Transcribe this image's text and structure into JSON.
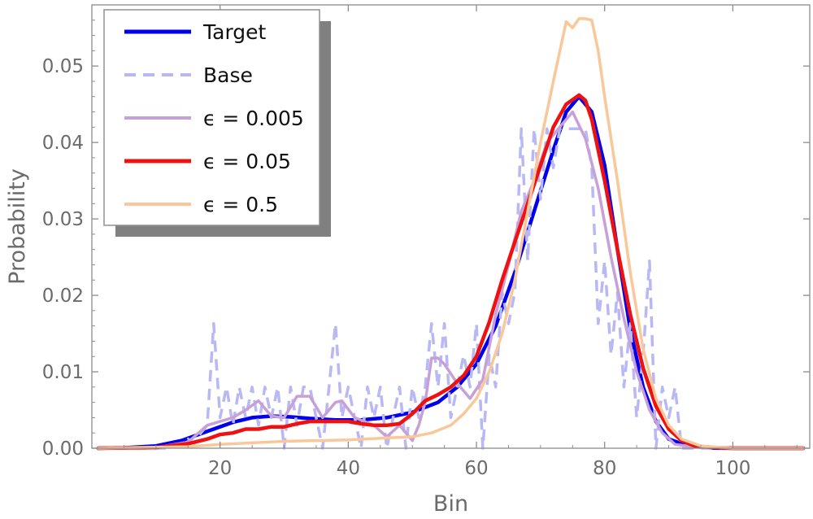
{
  "chart_data": {
    "type": "line",
    "title": "",
    "xlabel": "Bin",
    "ylabel": "Probability",
    "xlim": [
      0,
      112
    ],
    "ylim": [
      0,
      0.058
    ],
    "x_ticks": [
      20,
      40,
      60,
      80,
      100
    ],
    "x_tick_labels": [
      "20",
      "40",
      "60",
      "80",
      "100"
    ],
    "y_ticks": [
      0,
      0.01,
      0.02,
      0.03,
      0.04,
      0.05
    ],
    "y_tick_labels": [
      "0.00",
      "0.01",
      "0.02",
      "0.03",
      "0.04",
      "0.05"
    ],
    "grid": false,
    "frame": true,
    "legend_position": "top-left",
    "series": [
      {
        "name": "Target",
        "style": {
          "color": "#0000ee",
          "dashed": false
        },
        "points": [
          [
            1,
            0
          ],
          [
            5,
            5e-05
          ],
          [
            10,
            0.0003
          ],
          [
            14,
            0.001
          ],
          [
            18,
            0.0022
          ],
          [
            22,
            0.0034
          ],
          [
            25,
            0.004
          ],
          [
            28,
            0.0042
          ],
          [
            31,
            0.0041
          ],
          [
            34,
            0.0039
          ],
          [
            38,
            0.0037
          ],
          [
            42,
            0.0037
          ],
          [
            46,
            0.004
          ],
          [
            50,
            0.0047
          ],
          [
            54,
            0.006
          ],
          [
            57,
            0.008
          ],
          [
            60,
            0.011
          ],
          [
            63,
            0.016
          ],
          [
            66,
            0.023
          ],
          [
            69,
            0.031
          ],
          [
            72,
            0.039
          ],
          [
            74,
            0.044
          ],
          [
            76,
            0.046
          ],
          [
            78,
            0.044
          ],
          [
            80,
            0.037
          ],
          [
            82,
            0.026
          ],
          [
            84,
            0.0155
          ],
          [
            86,
            0.008
          ],
          [
            88,
            0.0035
          ],
          [
            90,
            0.0012
          ],
          [
            93,
            0.0003
          ],
          [
            97,
            2e-05
          ],
          [
            101,
            0
          ],
          [
            111,
            0
          ]
        ]
      },
      {
        "name": "Base",
        "style": {
          "color": "#b8b8f5",
          "dashed": true
        },
        "points": [
          [
            1,
            0
          ],
          [
            12,
            0
          ],
          [
            13,
            0.0005
          ],
          [
            14,
            0.0003
          ],
          [
            15,
            0.0012
          ],
          [
            16,
            0.0006
          ],
          [
            17,
            0.002
          ],
          [
            18,
            0.003
          ],
          [
            19,
            0.0163
          ],
          [
            20,
            0.004
          ],
          [
            21,
            0.008
          ],
          [
            22,
            0.003
          ],
          [
            23,
            0.008
          ],
          [
            24,
            0.004
          ],
          [
            25,
            0.008
          ],
          [
            26,
            0.003
          ],
          [
            27,
            0.008
          ],
          [
            28,
            0.004
          ],
          [
            29,
            0.008
          ],
          [
            30,
            0.0
          ],
          [
            31,
            0.008
          ],
          [
            32,
            0.003
          ],
          [
            33,
            0.008
          ],
          [
            34,
            0.008
          ],
          [
            35,
            0.004
          ],
          [
            36,
            0.0
          ],
          [
            37,
            0.008
          ],
          [
            38,
            0.0163
          ],
          [
            39,
            0.004
          ],
          [
            40,
            0.008
          ],
          [
            41,
            0.004
          ],
          [
            42,
            0.0
          ],
          [
            43,
            0.008
          ],
          [
            44,
            0.004
          ],
          [
            45,
            0.008
          ],
          [
            46,
            0.0
          ],
          [
            47,
            0.004
          ],
          [
            48,
            0.008
          ],
          [
            49,
            0.0
          ],
          [
            50,
            0.008
          ],
          [
            51,
            0.004
          ],
          [
            52,
            0.008
          ],
          [
            53,
            0.0163
          ],
          [
            54,
            0.008
          ],
          [
            55,
            0.0163
          ],
          [
            56,
            0.004
          ],
          [
            57,
            0.008
          ],
          [
            58,
            0.0122
          ],
          [
            59,
            0.008
          ],
          [
            60,
            0.0163
          ],
          [
            61,
            0.0
          ],
          [
            62,
            0.0122
          ],
          [
            63,
            0.008
          ],
          [
            64,
            0.0204
          ],
          [
            65,
            0.0163
          ],
          [
            66,
            0.0204
          ],
          [
            67,
            0.0418
          ],
          [
            68,
            0.0245
          ],
          [
            69,
            0.0418
          ],
          [
            70,
            0.0326
          ],
          [
            71,
            0.0418
          ],
          [
            72,
            0.0367
          ],
          [
            73,
            0.0418
          ],
          [
            74,
            0.0418
          ],
          [
            75,
            0.0418
          ],
          [
            76,
            0.0418
          ],
          [
            77,
            0.0418
          ],
          [
            78,
            0.0367
          ],
          [
            79,
            0.0163
          ],
          [
            80,
            0.0245
          ],
          [
            81,
            0.0122
          ],
          [
            82,
            0.0204
          ],
          [
            83,
            0.008
          ],
          [
            84,
            0.0163
          ],
          [
            85,
            0.004
          ],
          [
            86,
            0.0122
          ],
          [
            87,
            0.0245
          ],
          [
            88,
            0.0
          ],
          [
            89,
            0.008
          ],
          [
            90,
            0.004
          ],
          [
            91,
            0.008
          ],
          [
            92,
            0.0
          ],
          [
            93,
            0
          ],
          [
            111,
            0
          ]
        ]
      },
      {
        "name": "ϵ = 0.005",
        "style": {
          "color": "#c8a0d8",
          "dashed": false
        },
        "points": [
          [
            1,
            0
          ],
          [
            10,
            0.0001
          ],
          [
            15,
            0.0008
          ],
          [
            18,
            0.003
          ],
          [
            20,
            0.0035
          ],
          [
            22,
            0.004
          ],
          [
            24,
            0.005
          ],
          [
            26,
            0.0062
          ],
          [
            28,
            0.0042
          ],
          [
            30,
            0.004
          ],
          [
            32,
            0.0068
          ],
          [
            34,
            0.0068
          ],
          [
            36,
            0.004
          ],
          [
            38,
            0.006
          ],
          [
            39,
            0.0062
          ],
          [
            41,
            0.004
          ],
          [
            44,
            0.003
          ],
          [
            46,
            0.0015
          ],
          [
            48,
            0.003
          ],
          [
            50,
            0.001
          ],
          [
            51,
            0.003
          ],
          [
            52,
            0.006
          ],
          [
            53,
            0.0118
          ],
          [
            54,
            0.0118
          ],
          [
            55,
            0.011
          ],
          [
            57,
            0.0085
          ],
          [
            59,
            0.0065
          ],
          [
            61,
            0.009
          ],
          [
            63,
            0.0175
          ],
          [
            65,
            0.024
          ],
          [
            67,
            0.031
          ],
          [
            69,
            0.035
          ],
          [
            71,
            0.04
          ],
          [
            73,
            0.042
          ],
          [
            75,
            0.044
          ],
          [
            77,
            0.0405
          ],
          [
            79,
            0.034
          ],
          [
            81,
            0.025
          ],
          [
            83,
            0.017
          ],
          [
            85,
            0.01
          ],
          [
            87,
            0.005
          ],
          [
            89,
            0.002
          ],
          [
            91,
            0.0005
          ],
          [
            95,
            0.0001
          ],
          [
            100,
            0
          ],
          [
            111,
            0
          ]
        ]
      },
      {
        "name": "ϵ = 0.05",
        "style": {
          "color": "#ee1111",
          "dashed": false
        },
        "points": [
          [
            1,
            0
          ],
          [
            10,
            0.0001
          ],
          [
            15,
            0.0006
          ],
          [
            18,
            0.0012
          ],
          [
            20,
            0.0018
          ],
          [
            22,
            0.002
          ],
          [
            24,
            0.0025
          ],
          [
            26,
            0.0025
          ],
          [
            28,
            0.0028
          ],
          [
            30,
            0.0028
          ],
          [
            32,
            0.0032
          ],
          [
            34,
            0.0035
          ],
          [
            36,
            0.0035
          ],
          [
            38,
            0.0035
          ],
          [
            40,
            0.0035
          ],
          [
            42,
            0.0032
          ],
          [
            44,
            0.003
          ],
          [
            46,
            0.003
          ],
          [
            48,
            0.0032
          ],
          [
            50,
            0.0045
          ],
          [
            52,
            0.0062
          ],
          [
            54,
            0.007
          ],
          [
            56,
            0.008
          ],
          [
            58,
            0.0095
          ],
          [
            60,
            0.012
          ],
          [
            62,
            0.0165
          ],
          [
            64,
            0.022
          ],
          [
            66,
            0.027
          ],
          [
            68,
            0.032
          ],
          [
            70,
            0.037
          ],
          [
            72,
            0.042
          ],
          [
            74,
            0.045
          ],
          [
            76,
            0.0462
          ],
          [
            77,
            0.0455
          ],
          [
            78,
            0.043
          ],
          [
            80,
            0.035
          ],
          [
            82,
            0.026
          ],
          [
            84,
            0.0175
          ],
          [
            86,
            0.0105
          ],
          [
            88,
            0.0055
          ],
          [
            90,
            0.0025
          ],
          [
            92,
            0.001
          ],
          [
            94,
            0.0003
          ],
          [
            97,
            0.0001
          ],
          [
            100,
            0
          ],
          [
            111,
            0
          ]
        ]
      },
      {
        "name": "ϵ = 0.5",
        "style": {
          "color": "#f9c89a",
          "dashed": false
        },
        "points": [
          [
            1,
            0
          ],
          [
            15,
            0.0002
          ],
          [
            20,
            0.0005
          ],
          [
            25,
            0.0007
          ],
          [
            30,
            0.0009
          ],
          [
            35,
            0.001
          ],
          [
            40,
            0.0011
          ],
          [
            45,
            0.0013
          ],
          [
            50,
            0.0015
          ],
          [
            53,
            0.002
          ],
          [
            56,
            0.003
          ],
          [
            58,
            0.0045
          ],
          [
            60,
            0.0065
          ],
          [
            62,
            0.01
          ],
          [
            64,
            0.015
          ],
          [
            66,
            0.022
          ],
          [
            68,
            0.031
          ],
          [
            70,
            0.04
          ],
          [
            72,
            0.048
          ],
          [
            74,
            0.0558
          ],
          [
            75,
            0.055
          ],
          [
            76,
            0.0562
          ],
          [
            77,
            0.0562
          ],
          [
            78,
            0.056
          ],
          [
            79,
            0.052
          ],
          [
            80,
            0.046
          ],
          [
            82,
            0.035
          ],
          [
            84,
            0.023
          ],
          [
            86,
            0.013
          ],
          [
            88,
            0.0065
          ],
          [
            90,
            0.003
          ],
          [
            92,
            0.0012
          ],
          [
            95,
            0.0003
          ],
          [
            100,
            0
          ],
          [
            111,
            0
          ]
        ]
      }
    ]
  }
}
